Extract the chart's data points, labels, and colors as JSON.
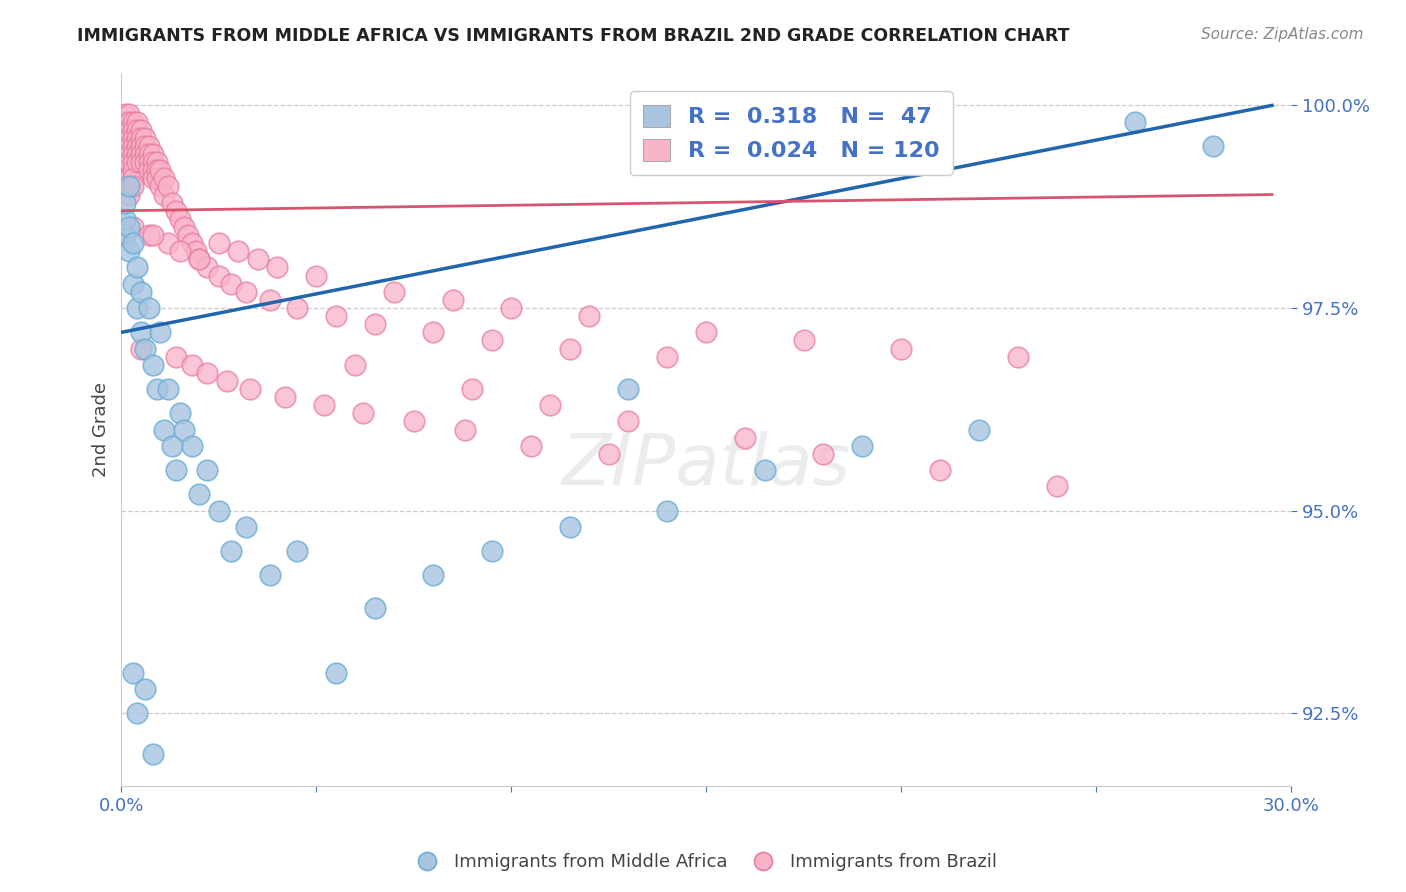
{
  "title": "IMMIGRANTS FROM MIDDLE AFRICA VS IMMIGRANTS FROM BRAZIL 2ND GRADE CORRELATION CHART",
  "source_text": "Source: ZipAtlas.com",
  "ylabel": "2nd Grade",
  "xlim": [
    0.0,
    0.3
  ],
  "ylim": [
    0.916,
    1.004
  ],
  "ytick_values": [
    1.0,
    0.975,
    0.95,
    0.925
  ],
  "ytick_labels": [
    "100.0%",
    "97.5%",
    "95.0%",
    "92.5%"
  ],
  "xtick_values": [
    0.0,
    0.3
  ],
  "xtick_labels": [
    "0.0%",
    "30.0%"
  ],
  "blue_R": 0.318,
  "blue_N": 47,
  "pink_R": 0.024,
  "pink_N": 120,
  "blue_color": "#a8c4e0",
  "blue_edge_color": "#6aaed6",
  "blue_line_color": "#2166ac",
  "pink_color": "#f9b4c8",
  "pink_edge_color": "#e87da0",
  "pink_line_color": "#d6546e",
  "background_color": "#ffffff",
  "tick_color": "#4472c4",
  "legend_label_blue": "Immigrants from Middle Africa",
  "legend_label_pink": "Immigrants from Brazil",
  "blue_x": [
    0.001,
    0.001,
    0.001,
    0.002,
    0.002,
    0.002,
    0.003,
    0.003,
    0.004,
    0.004,
    0.005,
    0.005,
    0.006,
    0.007,
    0.008,
    0.009,
    0.01,
    0.011,
    0.012,
    0.013,
    0.014,
    0.015,
    0.016,
    0.018,
    0.02,
    0.022,
    0.025,
    0.028,
    0.032,
    0.038,
    0.045,
    0.055,
    0.065,
    0.08,
    0.095,
    0.115,
    0.14,
    0.165,
    0.19,
    0.22,
    0.003,
    0.004,
    0.006,
    0.008,
    0.13,
    0.26,
    0.28
  ],
  "blue_y": [
    0.984,
    0.986,
    0.988,
    0.982,
    0.985,
    0.99,
    0.978,
    0.983,
    0.98,
    0.975,
    0.972,
    0.977,
    0.97,
    0.975,
    0.968,
    0.965,
    0.972,
    0.96,
    0.965,
    0.958,
    0.955,
    0.962,
    0.96,
    0.958,
    0.952,
    0.955,
    0.95,
    0.945,
    0.948,
    0.942,
    0.945,
    0.93,
    0.938,
    0.942,
    0.945,
    0.948,
    0.95,
    0.955,
    0.958,
    0.96,
    0.93,
    0.925,
    0.928,
    0.92,
    0.965,
    0.998,
    0.995
  ],
  "pink_x": [
    0.001,
    0.001,
    0.001,
    0.001,
    0.001,
    0.001,
    0.001,
    0.001,
    0.001,
    0.001,
    0.002,
    0.002,
    0.002,
    0.002,
    0.002,
    0.002,
    0.002,
    0.002,
    0.002,
    0.002,
    0.003,
    0.003,
    0.003,
    0.003,
    0.003,
    0.003,
    0.003,
    0.003,
    0.003,
    0.004,
    0.004,
    0.004,
    0.004,
    0.004,
    0.004,
    0.005,
    0.005,
    0.005,
    0.005,
    0.005,
    0.006,
    0.006,
    0.006,
    0.006,
    0.007,
    0.007,
    0.007,
    0.007,
    0.008,
    0.008,
    0.008,
    0.008,
    0.009,
    0.009,
    0.009,
    0.01,
    0.01,
    0.011,
    0.011,
    0.012,
    0.013,
    0.014,
    0.015,
    0.016,
    0.017,
    0.018,
    0.019,
    0.02,
    0.022,
    0.025,
    0.028,
    0.032,
    0.038,
    0.045,
    0.055,
    0.065,
    0.08,
    0.095,
    0.115,
    0.14,
    0.03,
    0.035,
    0.04,
    0.05,
    0.07,
    0.085,
    0.1,
    0.12,
    0.15,
    0.175,
    0.2,
    0.23,
    0.025,
    0.003,
    0.007,
    0.012,
    0.015,
    0.02,
    0.008,
    0.06,
    0.09,
    0.11,
    0.13,
    0.16,
    0.18,
    0.21,
    0.24,
    0.005,
    0.014,
    0.018,
    0.022,
    0.027,
    0.033,
    0.042,
    0.052,
    0.062,
    0.075,
    0.088,
    0.105,
    0.125
  ],
  "pink_y": [
    0.999,
    0.998,
    0.997,
    0.996,
    0.995,
    0.994,
    0.993,
    0.992,
    0.991,
    0.99,
    0.999,
    0.998,
    0.997,
    0.996,
    0.995,
    0.994,
    0.993,
    0.991,
    0.99,
    0.989,
    0.998,
    0.997,
    0.996,
    0.995,
    0.994,
    0.993,
    0.992,
    0.991,
    0.99,
    0.998,
    0.997,
    0.996,
    0.995,
    0.994,
    0.993,
    0.997,
    0.996,
    0.995,
    0.994,
    0.993,
    0.996,
    0.995,
    0.994,
    0.993,
    0.995,
    0.994,
    0.993,
    0.992,
    0.994,
    0.993,
    0.992,
    0.991,
    0.993,
    0.992,
    0.991,
    0.992,
    0.99,
    0.991,
    0.989,
    0.99,
    0.988,
    0.987,
    0.986,
    0.985,
    0.984,
    0.983,
    0.982,
    0.981,
    0.98,
    0.979,
    0.978,
    0.977,
    0.976,
    0.975,
    0.974,
    0.973,
    0.972,
    0.971,
    0.97,
    0.969,
    0.982,
    0.981,
    0.98,
    0.979,
    0.977,
    0.976,
    0.975,
    0.974,
    0.972,
    0.971,
    0.97,
    0.969,
    0.983,
    0.985,
    0.984,
    0.983,
    0.982,
    0.981,
    0.984,
    0.968,
    0.965,
    0.963,
    0.961,
    0.959,
    0.957,
    0.955,
    0.953,
    0.97,
    0.969,
    0.968,
    0.967,
    0.966,
    0.965,
    0.964,
    0.963,
    0.962,
    0.961,
    0.96,
    0.958,
    0.957
  ]
}
